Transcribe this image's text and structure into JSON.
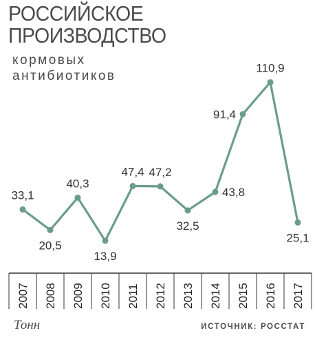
{
  "header": {
    "title_line1": "РОССИЙСКОЕ",
    "title_line2": "ПРОИЗВОДСТВО",
    "subtitle_line1": "кормовых",
    "subtitle_line2": "антибиотиков"
  },
  "footer": {
    "unit": "Тонн",
    "source": "ИСТОЧНИК: РОССТАТ"
  },
  "colors": {
    "line": "#6a9c8c",
    "marker": "#6a9c8c",
    "axis": "#333333",
    "text": "#333333"
  },
  "chart_data": {
    "type": "line",
    "title": "РОССИЙСКОЕ ПРОИЗВОДСТВО кормовых антибиотиков",
    "xlabel": "",
    "ylabel": "Тонн",
    "categories": [
      "2007",
      "2008",
      "2009",
      "2010",
      "2011",
      "2012",
      "2013",
      "2014",
      "2015",
      "2016",
      "2017"
    ],
    "series": [
      {
        "values": [
          33.1,
          20.5,
          40.3,
          13.9,
          47.4,
          47.2,
          32.5,
          43.8,
          91.4,
          110.9,
          25.1
        ],
        "labels": [
          "33,1",
          "20,5",
          "40,3",
          "13,9",
          "47,4",
          "47,2",
          "32,5",
          "43,8",
          "91,4",
          "110,9",
          "25,1"
        ],
        "label_positions": [
          "above",
          "below",
          "above",
          "below",
          "above",
          "above",
          "below",
          "right",
          "left",
          "above",
          "below"
        ]
      }
    ],
    "ylim": [
      0,
      120
    ],
    "grid": false,
    "legend": "none",
    "markers": true
  }
}
